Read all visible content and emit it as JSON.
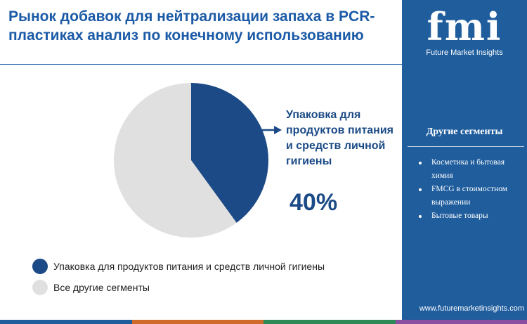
{
  "title": "Рынок добавок для нейтрализации запаха в PCR-пластиках анализ по конечному использованию",
  "brand": {
    "logo_word": "fmi",
    "logo_sub": "Future Market Insights",
    "website": "www.futuremarketinsights.com"
  },
  "sidebar": {
    "heading": "Другие сегменты",
    "items": [
      "Косметика и бытовая химия",
      "FMCG в стоимостном выражении",
      "Бытовые товары"
    ]
  },
  "callout": {
    "label": "Упаковка для продуктов питания и средств личной гигиены",
    "value": "40%"
  },
  "colors": {
    "primary": "#1b4a86",
    "other": "#e0e0e0",
    "sidebar": "#1f5d9d",
    "title": "#1b5aa6"
  },
  "chart_data": {
    "type": "pie",
    "start_angle_deg": 0,
    "direction": "clockwise",
    "slices": [
      {
        "label": "Упаковка для продуктов питания и средств личной гигиены",
        "value": 40,
        "color": "#1b4a86"
      },
      {
        "label": "Все другие сегменты",
        "value": 60,
        "color": "#e0e0e0"
      }
    ],
    "legend": {
      "position": "bottom-left",
      "items": [
        {
          "label": "Упаковка для продуктов питания и средств личной гигиены",
          "color": "#1b4a86"
        },
        {
          "label": "Все другие сегменты",
          "color": "#e0e0e0"
        }
      ]
    }
  },
  "bottom_bar_colors": [
    "#1f5d9d",
    "#d06a2b",
    "#2e8b57",
    "#8a4fa0"
  ]
}
